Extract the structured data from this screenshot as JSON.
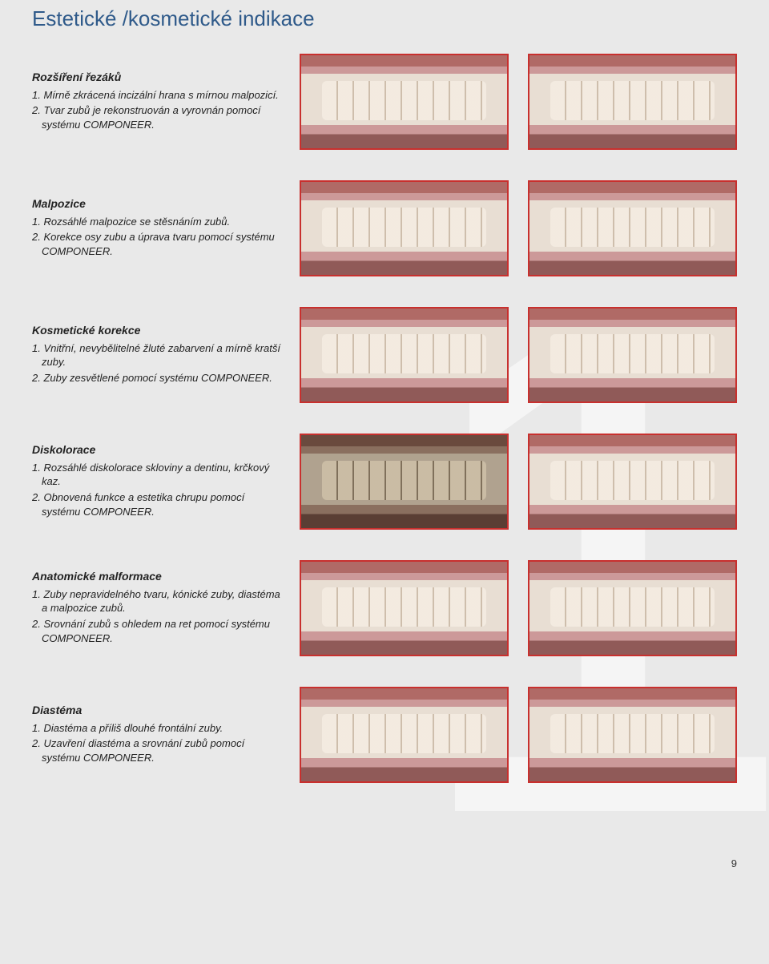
{
  "page_title": "Estetické /kosmetické indikace",
  "page_number": "9",
  "watermark_glyph": "1",
  "colors": {
    "title": "#2f5a8a",
    "image_border": "#c8302e",
    "background": "#e9e9e9",
    "watermark": "rgba(255,255,255,0.55)"
  },
  "sections": [
    {
      "title": "Rozšíření řezáků",
      "items": [
        "1. Mírně zkrácená incizální hrana s mírnou malpozicí.",
        "2. Tvar zubů je rekonstruován a vyrovnán pomocí systému COMPONEER."
      ],
      "before_dark": false
    },
    {
      "title": "Malpozice",
      "items": [
        "1. Rozsáhlé malpozice se stěsnáním zubů.",
        "2. Korekce osy zubu a úprava tvaru pomocí systému COMPONEER."
      ],
      "before_dark": false
    },
    {
      "title": "Kosmetické korekce",
      "items": [
        "1. Vnitřní, nevybělitelné žluté zabarvení a mírně kratší zuby.",
        "2. Zuby zesvětlené pomocí systému COMPONEER."
      ],
      "before_dark": false
    },
    {
      "title": "Diskolorace",
      "items": [
        "1. Rozsáhlé diskolorace skloviny a dentinu, krčkový kaz.",
        "2. Obnovená funkce a estetika chrupu pomocí systému COMPONEER."
      ],
      "before_dark": true
    },
    {
      "title": "Anatomické malformace",
      "items": [
        "1. Zuby nepravidelného tvaru, kónické zuby, diastéma a malpozice zubů.",
        "2. Srovnání zubů s ohledem na ret pomocí systému COMPONEER."
      ],
      "before_dark": false
    },
    {
      "title": "Diastéma",
      "items": [
        "1. Diastéma a příliš dlouhé frontální zuby.",
        "2. Uzavření diastéma a srovnání zubů pomocí systému COMPONEER."
      ],
      "before_dark": false
    }
  ]
}
